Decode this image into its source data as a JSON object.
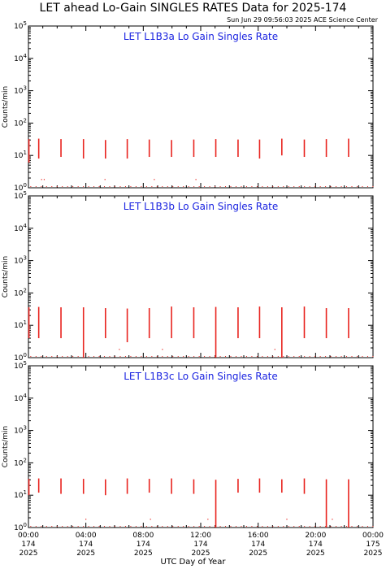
{
  "header": {
    "title": "LET ahead Lo-Gain SINGLES RATES Data for 2025-174",
    "timestamp": "Sun Jun 29 09:56:03 2025 ACE Science Center"
  },
  "xlabel": "UTC Day of Year",
  "colors": {
    "data": "#e8231e",
    "text": "#1a23e0",
    "axes": "#000000"
  },
  "chart_data": [
    {
      "type": "scatter",
      "title": "LET L1B3a Lo Gain Singles Rate",
      "ylabel": "Counts/min",
      "yscale": "log",
      "ylim": [
        1,
        100000
      ],
      "xlim": [
        0,
        1440
      ],
      "grid": false,
      "y_tick_labels": [
        "10^0",
        "10^1",
        "10^2",
        "10^3",
        "10^4",
        "10^5"
      ],
      "bursts": [
        {
          "t": 2,
          "min": 6,
          "max": 32
        },
        {
          "t": 43,
          "min": 8,
          "max": 33
        },
        {
          "t": 136,
          "min": 9,
          "max": 32
        },
        {
          "t": 230,
          "min": 8,
          "max": 32
        },
        {
          "t": 322,
          "min": 8,
          "max": 30
        },
        {
          "t": 413,
          "min": 8,
          "max": 32
        },
        {
          "t": 505,
          "min": 9,
          "max": 31
        },
        {
          "t": 598,
          "min": 9,
          "max": 30
        },
        {
          "t": 691,
          "min": 9,
          "max": 31
        },
        {
          "t": 783,
          "min": 9,
          "max": 32
        },
        {
          "t": 876,
          "min": 9,
          "max": 31
        },
        {
          "t": 966,
          "min": 8,
          "max": 31
        },
        {
          "t": 1059,
          "min": 10,
          "max": 33
        },
        {
          "t": 1153,
          "min": 9,
          "max": 31
        },
        {
          "t": 1245,
          "min": 9,
          "max": 32
        },
        {
          "t": 1338,
          "min": 9,
          "max": 33
        }
      ],
      "sparse_points": [
        {
          "t": 55,
          "v": 1.8
        },
        {
          "t": 66,
          "v": 1.8
        },
        {
          "t": 320,
          "v": 1.8
        },
        {
          "t": 526,
          "v": 1.8
        },
        {
          "t": 700,
          "v": 1.8
        }
      ]
    },
    {
      "type": "scatter",
      "title": "LET L1B3b Lo Gain Singles Rate",
      "ylabel": "Counts/min",
      "yscale": "log",
      "ylim": [
        1,
        100000
      ],
      "xlim": [
        0,
        1440
      ],
      "grid": false,
      "y_tick_labels": [
        "10^0",
        "10^1",
        "10^2",
        "10^3",
        "10^4",
        "10^5"
      ],
      "bursts": [
        {
          "t": 2,
          "min": 4,
          "max": 36
        },
        {
          "t": 43,
          "min": 4,
          "max": 37
        },
        {
          "t": 136,
          "min": 4,
          "max": 36
        },
        {
          "t": 230,
          "min": 1,
          "max": 36
        },
        {
          "t": 322,
          "min": 4,
          "max": 34
        },
        {
          "t": 413,
          "min": 3,
          "max": 33
        },
        {
          "t": 505,
          "min": 4,
          "max": 34
        },
        {
          "t": 598,
          "min": 4,
          "max": 38
        },
        {
          "t": 691,
          "min": 4,
          "max": 36
        },
        {
          "t": 783,
          "min": 1,
          "max": 37
        },
        {
          "t": 876,
          "min": 4,
          "max": 36
        },
        {
          "t": 966,
          "min": 4,
          "max": 38
        },
        {
          "t": 1059,
          "min": 1,
          "max": 36
        },
        {
          "t": 1153,
          "min": 4,
          "max": 38
        },
        {
          "t": 1245,
          "min": 4,
          "max": 34
        },
        {
          "t": 1338,
          "min": 4,
          "max": 34
        }
      ],
      "sparse_points": [
        {
          "t": 380,
          "v": 1.8
        },
        {
          "t": 560,
          "v": 1.8
        },
        {
          "t": 1030,
          "v": 1.8
        }
      ]
    },
    {
      "type": "scatter",
      "title": "LET L1B3c Lo Gain Singles Rate",
      "ylabel": "Counts/min",
      "yscale": "log",
      "ylim": [
        1,
        100000
      ],
      "xlim": [
        0,
        1440
      ],
      "grid": false,
      "y_tick_labels": [
        "10^0",
        "10^1",
        "10^2",
        "10^3",
        "10^4",
        "10^5"
      ],
      "bursts": [
        {
          "t": 2,
          "min": 10,
          "max": 32
        },
        {
          "t": 43,
          "min": 12,
          "max": 33
        },
        {
          "t": 136,
          "min": 11,
          "max": 33
        },
        {
          "t": 230,
          "min": 11,
          "max": 32
        },
        {
          "t": 322,
          "min": 10,
          "max": 31
        },
        {
          "t": 413,
          "min": 11,
          "max": 33
        },
        {
          "t": 505,
          "min": 12,
          "max": 32
        },
        {
          "t": 598,
          "min": 11,
          "max": 33
        },
        {
          "t": 691,
          "min": 11,
          "max": 31
        },
        {
          "t": 783,
          "min": 1,
          "max": 30
        },
        {
          "t": 876,
          "min": 12,
          "max": 32
        },
        {
          "t": 966,
          "min": 12,
          "max": 33
        },
        {
          "t": 1059,
          "min": 12,
          "max": 31
        },
        {
          "t": 1153,
          "min": 11,
          "max": 33
        },
        {
          "t": 1245,
          "min": 1,
          "max": 31
        },
        {
          "t": 1338,
          "min": 1,
          "max": 31
        }
      ],
      "sparse_points": [
        {
          "t": 240,
          "v": 1.8
        },
        {
          "t": 510,
          "v": 1.8
        },
        {
          "t": 750,
          "v": 1.8
        },
        {
          "t": 1080,
          "v": 1.8
        },
        {
          "t": 1270,
          "v": 1.8
        }
      ]
    }
  ],
  "x_ticks": [
    {
      "t": 0,
      "lines": [
        "00:00",
        "174",
        "2025"
      ]
    },
    {
      "t": 240,
      "lines": [
        "04:00",
        "174",
        "2025"
      ]
    },
    {
      "t": 480,
      "lines": [
        "08:00",
        "174",
        "2025"
      ]
    },
    {
      "t": 720,
      "lines": [
        "12:00",
        "174",
        "2025"
      ]
    },
    {
      "t": 960,
      "lines": [
        "16:00",
        "174",
        "2025"
      ]
    },
    {
      "t": 1200,
      "lines": [
        "20:00",
        "174",
        "2025"
      ]
    },
    {
      "t": 1440,
      "lines": [
        "00:00",
        "175",
        "2025"
      ]
    }
  ]
}
